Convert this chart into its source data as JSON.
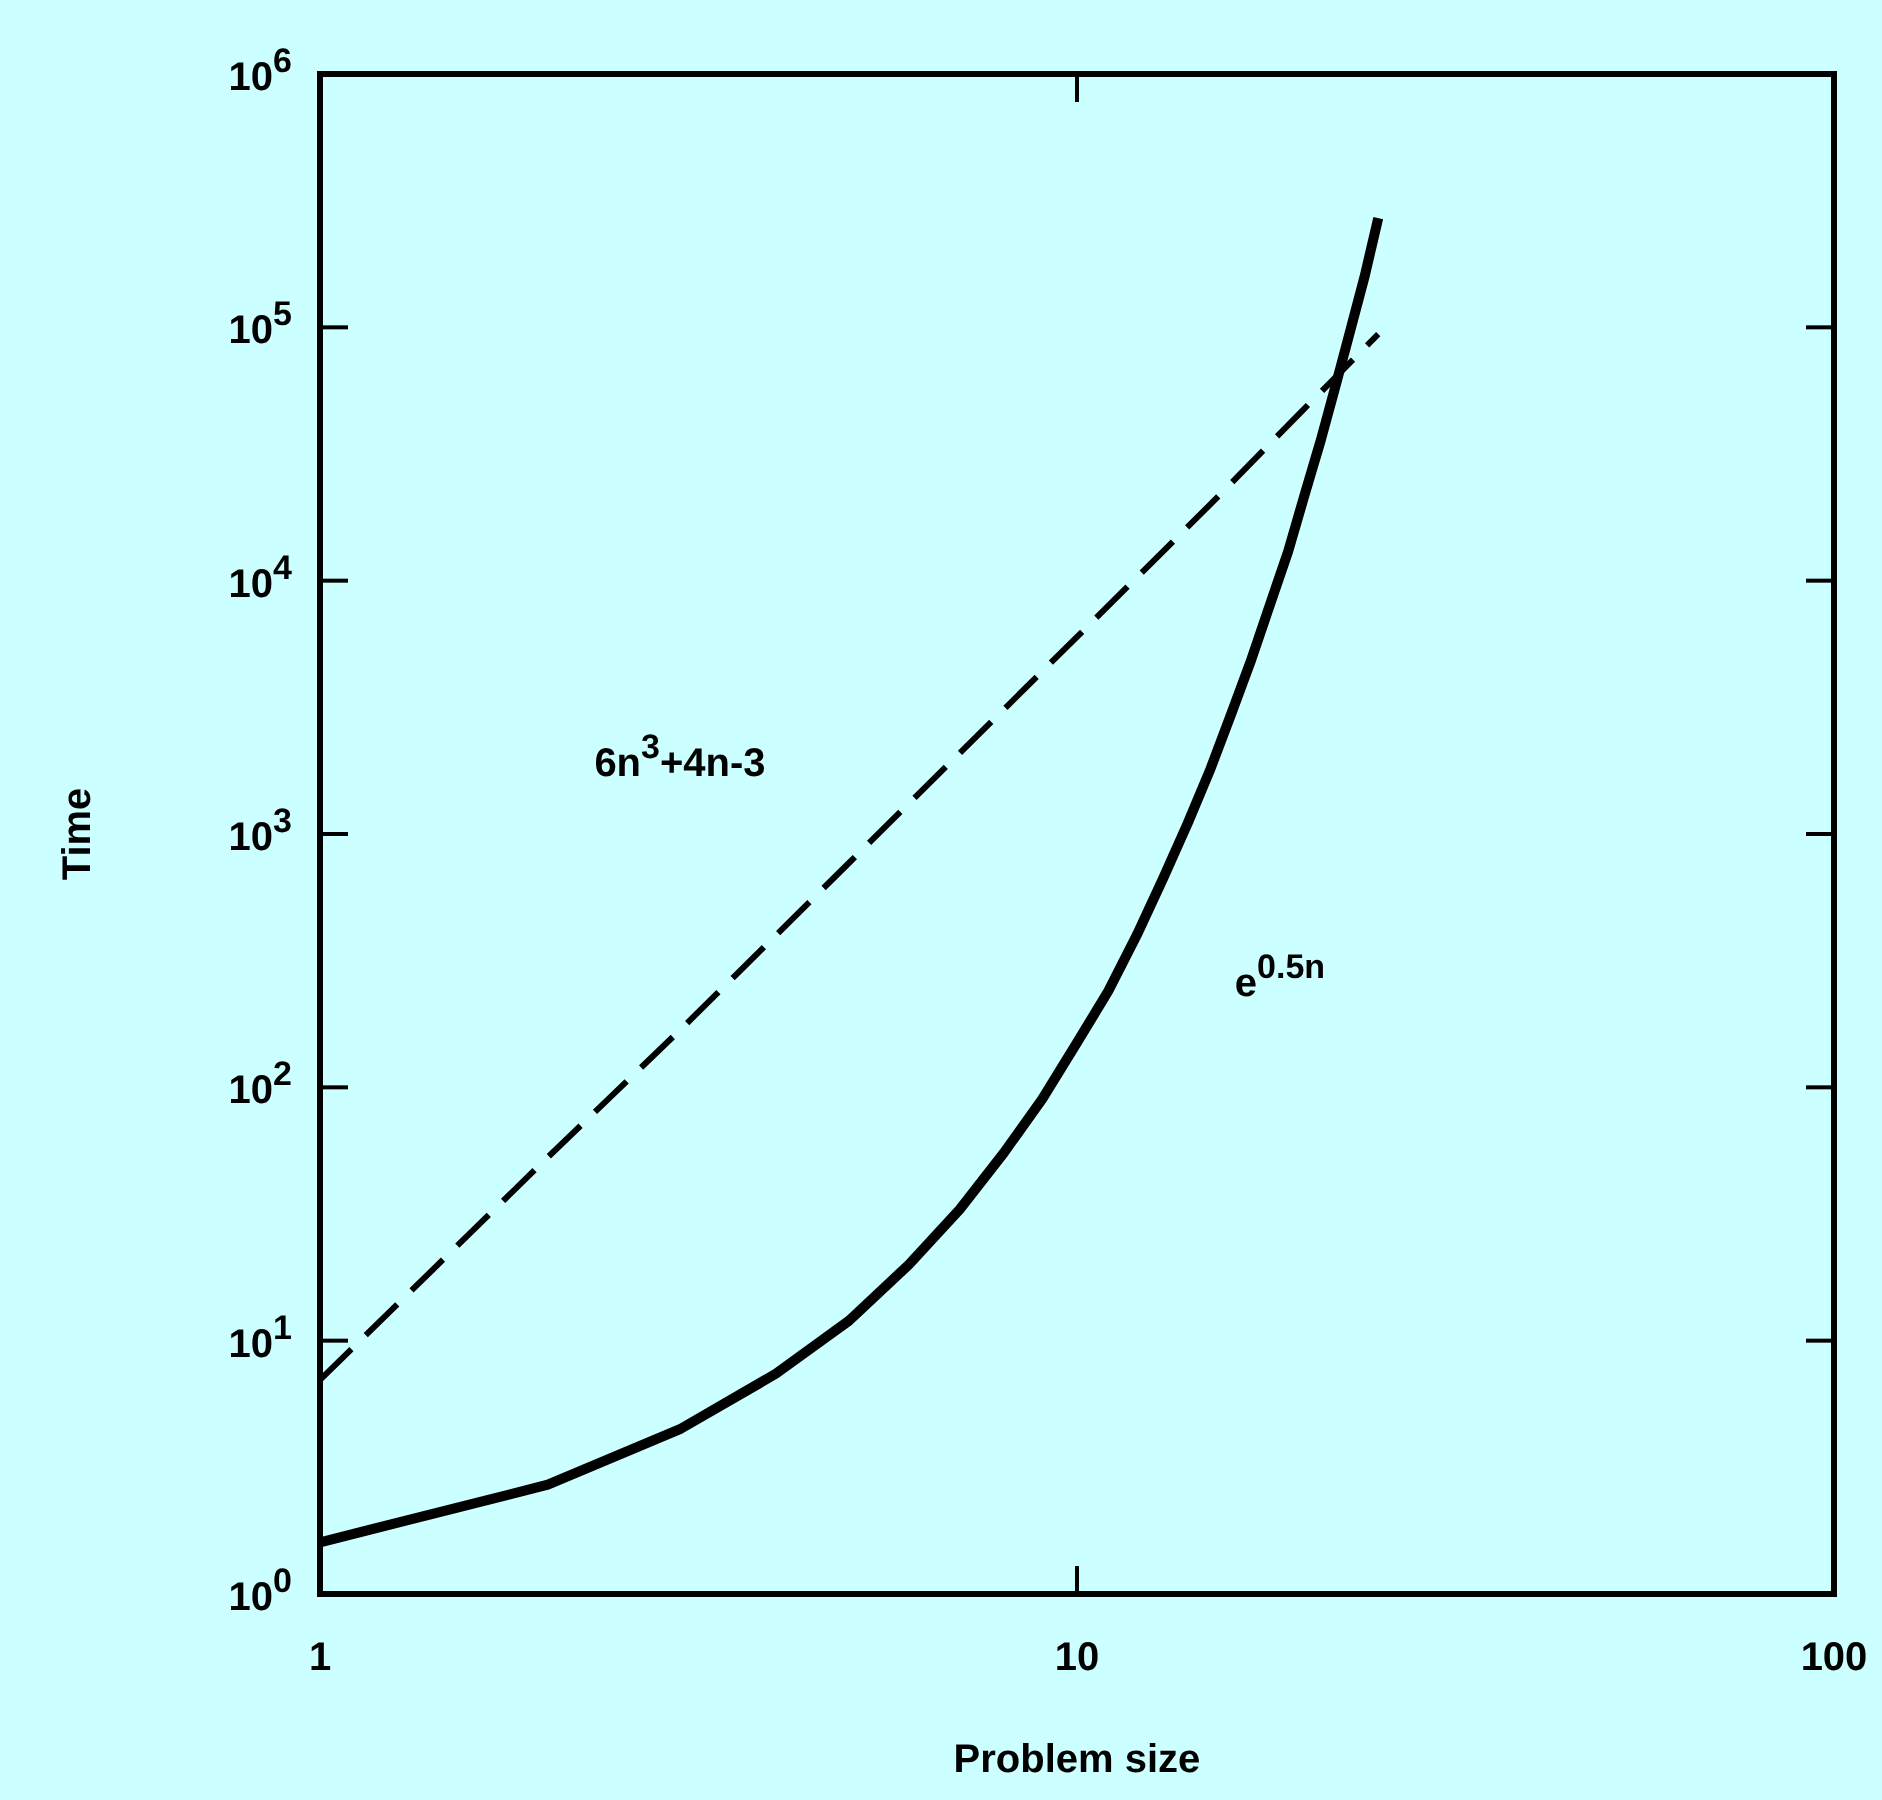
{
  "chart_data": {
    "type": "line",
    "xlabel": "Problem size",
    "ylabel": "Time",
    "log": "xy",
    "grid": false,
    "marker": "none",
    "xlim": [
      1,
      100
    ],
    "xticks": [
      1,
      10,
      100
    ],
    "ylim": [
      1,
      1000000
    ],
    "yticks": [
      {
        "value": 1,
        "label": "10$^{0}$"
      },
      {
        "value": 10,
        "label": "10$^{1}$"
      },
      {
        "value": 100,
        "label": "10$^{2}$"
      },
      {
        "value": 1000,
        "label": "10$^{3}$"
      },
      {
        "value": 10000,
        "label": "10$^{4}$"
      },
      {
        "value": 100000,
        "label": "10$^{5}$"
      },
      {
        "value": 1000000,
        "label": "10$^{6}$"
      }
    ],
    "series": [
      {
        "color": "#000000",
        "line_style": "dashed",
        "x": [
          1,
          2,
          3,
          5,
          10,
          15,
          20,
          25
        ],
        "values": [
          7,
          53,
          170,
          770,
          6000,
          20000,
          48000,
          94000
        ]
      },
      {
        "color": "#000000",
        "line_style": "solid",
        "x": [
          1,
          2,
          3,
          4,
          5,
          6,
          7,
          8,
          9,
          10,
          11,
          12,
          13,
          14,
          15,
          16,
          17,
          18,
          19,
          20,
          21,
          22,
          23,
          24,
          25
        ],
        "values": [
          1.6,
          2.7,
          4.5,
          7.4,
          12,
          20,
          33,
          55,
          90,
          150,
          240,
          400,
          670,
          1100,
          1800,
          3000,
          4900,
          8100,
          13000,
          22000,
          36000,
          60000,
          99000,
          160000,
          270000
        ]
      }
    ],
    "annotations": [
      "6n$^{3}$+4n-3",
      "e$^{0.5n}$"
    ]
  }
}
